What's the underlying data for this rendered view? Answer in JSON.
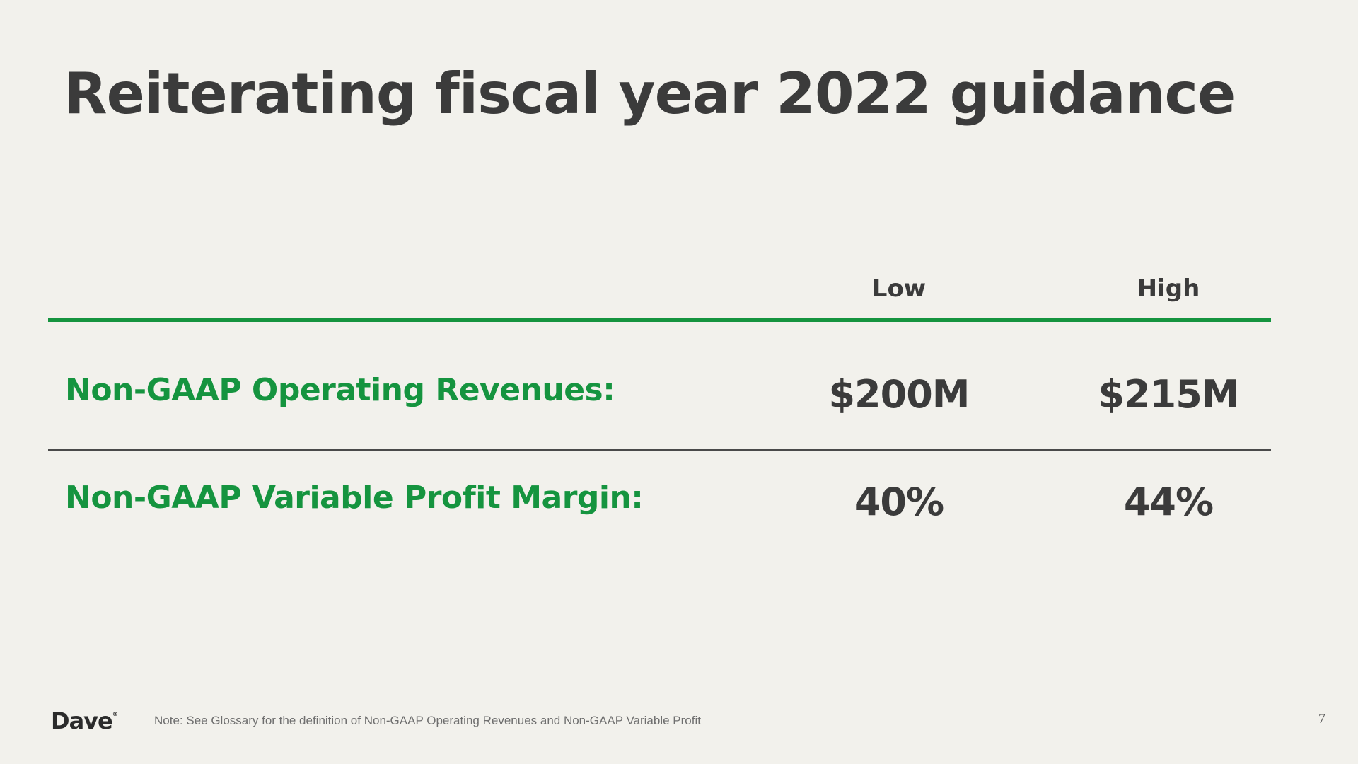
{
  "slide": {
    "title": "Reiterating fiscal year 2022 guidance",
    "columns": [
      "Low",
      "High"
    ],
    "rows": [
      {
        "label": "Non-GAAP Operating Revenues:",
        "low": "$200M",
        "high": "$215M"
      },
      {
        "label": "Non-GAAP Variable Profit Margin:",
        "low": "40%",
        "high": "44%"
      }
    ],
    "footer": {
      "logo": "Dave",
      "logo_mark": "®",
      "note": "Note: See Glossary for the definition of Non-GAAP Operating Revenues and Non-GAAP Variable Profit",
      "page_number": "7"
    }
  },
  "colors": {
    "background": "#f2f1ec",
    "accent_green": "#15943f",
    "text_dark": "#3b3b3b"
  }
}
